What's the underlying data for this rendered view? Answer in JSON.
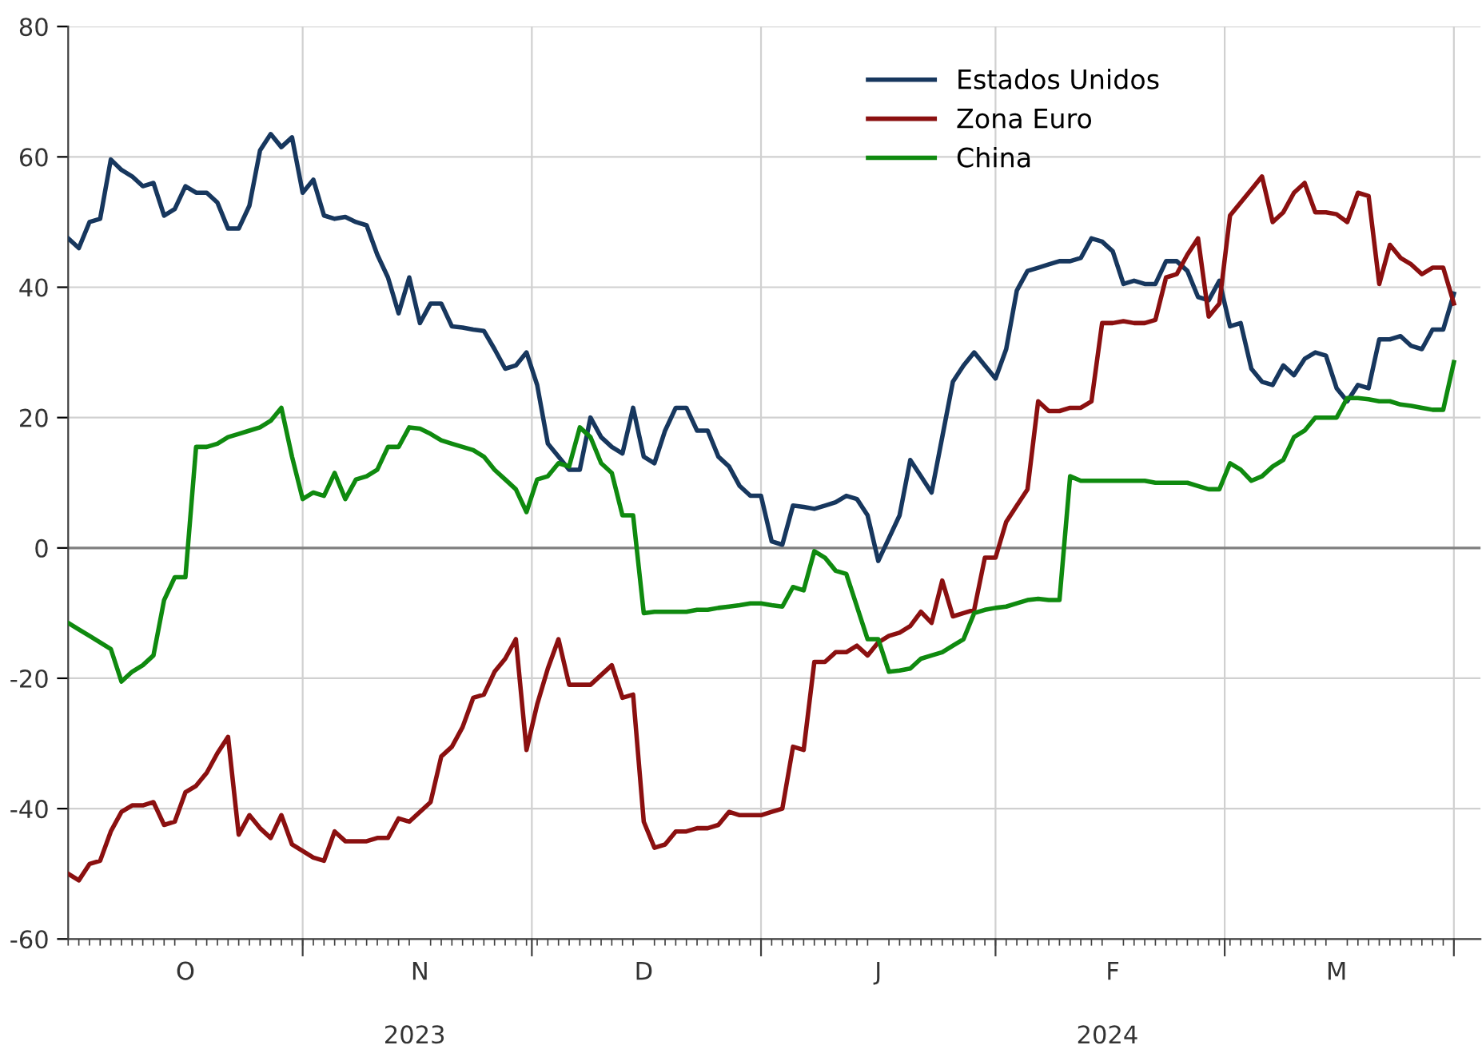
{
  "chart_data": {
    "type": "line",
    "categories": [
      null,
      null,
      null,
      null,
      null,
      null,
      null,
      null,
      null,
      null,
      null,
      "O",
      null,
      null,
      null,
      null,
      null,
      null,
      null,
      null,
      null,
      null,
      null,
      null,
      null,
      null,
      null,
      null,
      null,
      null,
      null,
      null,
      null,
      "N",
      null,
      null,
      null,
      null,
      null,
      null,
      null,
      null,
      null,
      null,
      null,
      null,
      null,
      null,
      null,
      null,
      null,
      null,
      null,
      null,
      "D",
      null,
      null,
      null,
      null,
      null,
      null,
      null,
      null,
      null,
      null,
      null,
      null,
      null,
      null,
      null,
      null,
      null,
      null,
      null,
      null,
      null,
      "J",
      null,
      null,
      null,
      null,
      null,
      null,
      null,
      null,
      null,
      null,
      null,
      null,
      null,
      null,
      null,
      null,
      null,
      null,
      null,
      null,
      null,
      "F",
      null,
      null,
      null,
      null,
      null,
      null,
      null,
      null,
      null,
      null,
      null,
      null,
      null,
      null,
      null,
      null,
      null,
      null,
      null,
      null,
      "M",
      null,
      null,
      null,
      null,
      null,
      null,
      null,
      null,
      null,
      null,
      null
    ],
    "series": [
      {
        "name": "Estados Unidos",
        "color": "#17375e",
        "values": [
          47.5,
          46,
          50,
          50.5,
          59.6,
          58,
          57,
          55.5,
          56,
          51,
          52,
          55.5,
          54.5,
          54.5,
          53,
          49,
          49,
          52.5,
          61,
          63.5,
          61.5,
          63,
          54.5,
          56.5,
          51,
          50.5,
          50.8,
          50,
          49.5,
          45,
          41.5,
          36,
          41.5,
          34.5,
          37.5,
          37.5,
          34,
          33.8,
          33.5,
          33.3,
          30.5,
          27.5,
          28,
          30,
          25,
          16,
          14,
          12,
          12,
          20,
          17,
          15.5,
          14.5,
          21.5,
          14,
          13,
          18,
          21.5,
          21.5,
          18,
          18,
          14,
          12.5,
          9.5,
          8,
          8,
          1,
          0.5,
          6.5,
          6.3,
          6,
          6.5,
          7,
          8,
          7.5,
          5,
          -2,
          1.5,
          5,
          13.5,
          11,
          8.5,
          17,
          25.5,
          28,
          30,
          28,
          26,
          30.5,
          39.5,
          42.5,
          43,
          43.5,
          44,
          44,
          44.5,
          47.5,
          47,
          45.5,
          40.5,
          41,
          40.5,
          40.5,
          44,
          44,
          42.5,
          38.5,
          38,
          41,
          34,
          34.5,
          27.5,
          25.5,
          25,
          28,
          26.5,
          29,
          30,
          29.5,
          24.5,
          22.5,
          25,
          24.5,
          32,
          32,
          32.5,
          31,
          30.5,
          33.5,
          33.5,
          39
        ]
      },
      {
        "name": "Zona Euro",
        "color": "#8b1010",
        "values": [
          -50,
          -51,
          -48.5,
          -48,
          -43.5,
          -40.5,
          -39.5,
          -39.5,
          -39,
          -42.5,
          -42,
          -37.5,
          -36.5,
          -34.5,
          -31.5,
          -29,
          -44,
          -41,
          -43,
          -44.5,
          -41,
          -45.5,
          -46.5,
          -47.5,
          -48,
          -43.5,
          -45,
          -45,
          -45,
          -44.5,
          -44.5,
          -41.5,
          -42,
          -40.5,
          -39,
          -32,
          -30.5,
          -27.5,
          -23,
          -22.5,
          -19,
          -17,
          -14,
          -31,
          -24,
          -18.5,
          -14,
          -21,
          -21,
          -21,
          -19.5,
          -18,
          -23,
          -22.5,
          -42,
          -46,
          -45.5,
          -43.5,
          -43.5,
          -43,
          -43,
          -42.5,
          -40.5,
          -41,
          -41,
          -41,
          -40.5,
          -40,
          -30.5,
          -31,
          -17.5,
          -17.5,
          -16,
          -16,
          -15,
          -16.5,
          -14.5,
          -13.5,
          -13,
          -12,
          -9.8,
          -11.5,
          -5,
          -10.5,
          -10,
          -9.5,
          -1.5,
          -1.5,
          4,
          6.5,
          9,
          22.5,
          21,
          21,
          21.5,
          21.5,
          22.5,
          34.5,
          34.5,
          34.8,
          34.5,
          34.5,
          35,
          41.5,
          42,
          45,
          47.5,
          35.5,
          37.5,
          51,
          53,
          55,
          57,
          50,
          51.5,
          54.5,
          56,
          51.5,
          51.5,
          51.2,
          50,
          54.5,
          54,
          40.5,
          46.5,
          44.5,
          43.5,
          42,
          43,
          43,
          37.5
        ]
      },
      {
        "name": "China",
        "color": "#0f8a0f",
        "values": [
          -11.5,
          -12.5,
          -13.5,
          -14.5,
          -15.5,
          -20.5,
          -19,
          -18,
          -16.5,
          -8,
          -4.5,
          -4.5,
          15.5,
          15.5,
          16,
          17,
          17.5,
          18,
          18.5,
          19.5,
          21.5,
          14,
          7.5,
          8.5,
          8,
          11.5,
          7.5,
          10.5,
          11,
          12,
          15.5,
          15.5,
          18.5,
          18.3,
          17.5,
          16.5,
          16,
          15.5,
          15,
          14,
          12,
          10.5,
          9,
          5.5,
          10.5,
          11,
          13,
          12.5,
          18.5,
          17,
          13,
          11.5,
          5,
          5,
          -10,
          -9.8,
          -9.8,
          -9.8,
          -9.8,
          -9.5,
          -9.5,
          -9.2,
          -9,
          -8.8,
          -8.5,
          -8.5,
          -8.8,
          -9,
          -6,
          -6.5,
          -0.5,
          -1.5,
          -3.5,
          -4,
          -9,
          -14,
          -14,
          -19,
          -18.8,
          -18.5,
          -17,
          -16.5,
          -16,
          -15,
          -14,
          -10,
          -9.5,
          -9.2,
          -9,
          -8.5,
          -8,
          -7.8,
          -8,
          -8,
          11,
          10.3,
          10.3,
          10.3,
          10.3,
          10.3,
          10.3,
          10.3,
          10,
          10,
          10,
          10,
          9.5,
          9,
          9,
          13,
          12,
          10.3,
          11,
          12.5,
          13.5,
          17,
          18,
          20,
          20,
          20,
          23,
          23,
          22.8,
          22.5,
          22.5,
          22,
          21.8,
          21.5,
          21.2,
          21.2,
          28.5
        ]
      }
    ],
    "ylim": [
      -60,
      80
    ],
    "yticks": [
      -60,
      -40,
      -20,
      0,
      20,
      40,
      60,
      80
    ],
    "ref_lines": [
      {
        "axis": "y",
        "value": 0,
        "color": "#808080"
      }
    ],
    "annotations": [
      "2023",
      "2024"
    ],
    "grid": true,
    "legend": "top right",
    "line_style": "solid",
    "marker": "none"
  }
}
